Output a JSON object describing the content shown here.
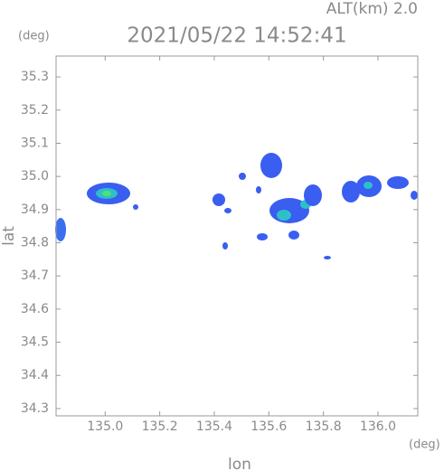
{
  "chart_data": {
    "type": "map",
    "title": "2021/05/22 14:52:41",
    "subtitle": "ALT(km) 2.0",
    "y_unit": "(deg)",
    "x_unit": "(deg)",
    "xlabel": "lon",
    "ylabel": "lat",
    "xlim": [
      134.82,
      136.146
    ],
    "ylim": [
      34.278,
      35.363
    ],
    "xticks": [
      {
        "value": 135.0,
        "label": "135.0"
      },
      135.2,
      135.4,
      135.6,
      135.8,
      {
        "value": 136.0,
        "label": "136.0"
      }
    ],
    "yticks": [
      34.3,
      34.4,
      34.5,
      34.6,
      34.7,
      34.8,
      34.9,
      {
        "value": 35.0,
        "label": "35.0"
      },
      35.1,
      35.2,
      35.3
    ]
  }
}
